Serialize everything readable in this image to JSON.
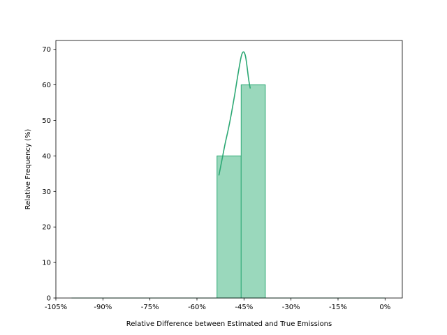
{
  "chart_data": {
    "type": "bar",
    "title": "",
    "xlabel": "Relative Difference between Estimated and True Emissions",
    "ylabel": "Relative Frequency (%)",
    "xlim": [
      -105,
      5.5
    ],
    "ylim": [
      0,
      72.5
    ],
    "xticks": [
      -105,
      -90,
      -75,
      -60,
      -45,
      -30,
      -15,
      0
    ],
    "xtick_labels": [
      "-105%",
      "-90%",
      "-75%",
      "-60%",
      "-45%",
      "-30%",
      "-15%",
      "0%"
    ],
    "yticks": [
      0,
      10,
      20,
      30,
      40,
      50,
      60,
      70
    ],
    "ytick_labels": [
      "0",
      "10",
      "20",
      "30",
      "40",
      "50",
      "60",
      "70"
    ],
    "bins": [
      {
        "x0": -53.6,
        "x1": -45.9,
        "value": 40
      },
      {
        "x0": -45.9,
        "x1": -38.2,
        "value": 60
      }
    ],
    "baseline_range": [
      -100,
      0
    ],
    "kde": {
      "x": [
        -53.0,
        -52.0,
        -51.0,
        -50.0,
        -49.0,
        -48.0,
        -47.0,
        -46.0,
        -45.5,
        -45.0,
        -44.5,
        -44.0,
        -43.5,
        -43.0
      ],
      "y": [
        34.5,
        39.0,
        43.5,
        47.5,
        52.0,
        57.0,
        62.5,
        67.5,
        69.0,
        69.2,
        68.0,
        65.0,
        61.5,
        59.0
      ]
    },
    "colors": {
      "fill": "#9ad8bc",
      "edge": "#2ca874",
      "line": "#2ca874"
    }
  }
}
